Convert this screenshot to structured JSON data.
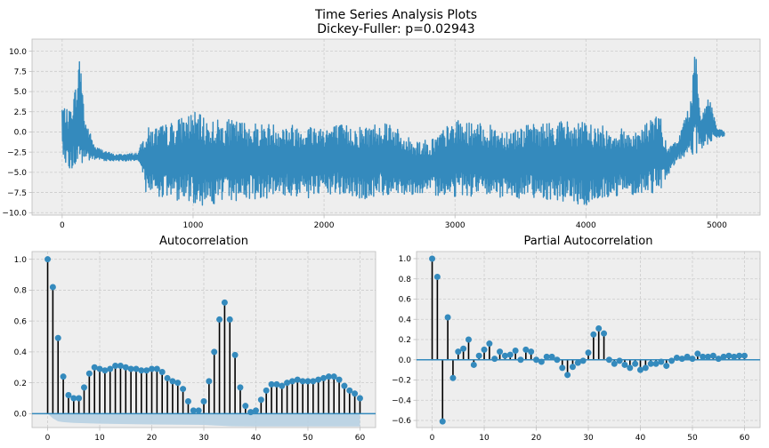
{
  "figure": {
    "title": "Time Series Analysis Plots",
    "subtitle": "Dickey-Fuller: p=0.02943"
  },
  "colors": {
    "line": "#348abd",
    "stem": "#000000",
    "marker": "#348abd",
    "baseline": "#348abd",
    "band": "#b7d0e2",
    "axes_bg": "#eeeeee",
    "grid": "#cccccc",
    "spine": "#bcbcbc",
    "tick_text": "#000000"
  },
  "chart_data": [
    {
      "id": "timeseries",
      "type": "line",
      "title": "",
      "xlabel": "",
      "ylabel": "",
      "xlim": [
        -230,
        5330
      ],
      "ylim": [
        -10.3,
        11.5
      ],
      "xticks": [
        0,
        1000,
        2000,
        3000,
        4000,
        5000
      ],
      "yticks": [
        -10.0,
        -7.5,
        -5.0,
        -2.5,
        0.0,
        2.5,
        5.0,
        7.5,
        10.0
      ],
      "ytick_labels": [
        "−10.0",
        "−7.5",
        "−5.0",
        "−2.5",
        "0.0",
        "2.5",
        "5.0",
        "7.5",
        "10.0"
      ],
      "grid": true,
      "envelope": [
        {
          "x": 0,
          "lo": -2.3,
          "hi": 3.5
        },
        {
          "x": 50,
          "lo": -5.0,
          "hi": 2.5
        },
        {
          "x": 100,
          "lo": -4.5,
          "hi": 5.5
        },
        {
          "x": 140,
          "lo": -4.8,
          "hi": 10.2
        },
        {
          "x": 170,
          "lo": -3.8,
          "hi": 2.0
        },
        {
          "x": 250,
          "lo": -3.5,
          "hi": -1.8
        },
        {
          "x": 400,
          "lo": -3.6,
          "hi": -2.8
        },
        {
          "x": 580,
          "lo": -3.6,
          "hi": -2.6
        },
        {
          "x": 640,
          "lo": -7.5,
          "hi": 0.5
        },
        {
          "x": 800,
          "lo": -8.3,
          "hi": 1.0
        },
        {
          "x": 1000,
          "lo": -8.8,
          "hi": 2.6
        },
        {
          "x": 1100,
          "lo": -9.2,
          "hi": 1.7
        },
        {
          "x": 1300,
          "lo": -8.6,
          "hi": 1.5
        },
        {
          "x": 1500,
          "lo": -8.3,
          "hi": 1.2
        },
        {
          "x": 1700,
          "lo": -8.0,
          "hi": 1.0
        },
        {
          "x": 1900,
          "lo": -8.3,
          "hi": 1.0
        },
        {
          "x": 2100,
          "lo": -7.8,
          "hi": 1.0
        },
        {
          "x": 2300,
          "lo": -8.5,
          "hi": 0.8
        },
        {
          "x": 2500,
          "lo": -7.8,
          "hi": 1.7
        },
        {
          "x": 2600,
          "lo": -7.7,
          "hi": -0.5
        },
        {
          "x": 2800,
          "lo": -7.8,
          "hi": -1.0
        },
        {
          "x": 3000,
          "lo": -8.0,
          "hi": 1.5
        },
        {
          "x": 3200,
          "lo": -8.0,
          "hi": 1.0
        },
        {
          "x": 3400,
          "lo": -8.3,
          "hi": 0.5
        },
        {
          "x": 3600,
          "lo": -8.1,
          "hi": 1.0
        },
        {
          "x": 3800,
          "lo": -8.6,
          "hi": 1.5
        },
        {
          "x": 4000,
          "lo": -9.3,
          "hi": 1.2
        },
        {
          "x": 4200,
          "lo": -8.0,
          "hi": 0.5
        },
        {
          "x": 4400,
          "lo": -7.7,
          "hi": 0.3
        },
        {
          "x": 4560,
          "lo": -7.5,
          "hi": 2.6
        },
        {
          "x": 4620,
          "lo": -5.5,
          "hi": -2.0
        },
        {
          "x": 4700,
          "lo": -3.5,
          "hi": -1.0
        },
        {
          "x": 4800,
          "lo": -3.0,
          "hi": 4.0
        },
        {
          "x": 4840,
          "lo": -3.0,
          "hi": 11.0
        },
        {
          "x": 4880,
          "lo": -2.5,
          "hi": 2.0
        },
        {
          "x": 4940,
          "lo": -1.5,
          "hi": 4.8
        },
        {
          "x": 5000,
          "lo": -0.8,
          "hi": 0.5
        },
        {
          "x": 5060,
          "lo": -0.5,
          "hi": 0.0
        }
      ]
    },
    {
      "id": "acf",
      "type": "stem",
      "title": "Autocorrelation",
      "xlim": [
        -3,
        63
      ],
      "ylim": [
        -0.09,
        1.05
      ],
      "xticks": [
        0,
        10,
        20,
        30,
        40,
        50,
        60
      ],
      "yticks": [
        0.0,
        0.2,
        0.4,
        0.6,
        0.8,
        1.0
      ],
      "ytick_labels": [
        "0.0",
        "0.2",
        "0.4",
        "0.6",
        "0.8",
        "1.0"
      ],
      "grid": true,
      "x": [
        0,
        1,
        2,
        3,
        4,
        5,
        6,
        7,
        8,
        9,
        10,
        11,
        12,
        13,
        14,
        15,
        16,
        17,
        18,
        19,
        20,
        21,
        22,
        23,
        24,
        25,
        26,
        27,
        28,
        29,
        30,
        31,
        32,
        33,
        34,
        35,
        36,
        37,
        38,
        39,
        40,
        41,
        42,
        43,
        44,
        45,
        46,
        47,
        48,
        49,
        50,
        51,
        52,
        53,
        54,
        55,
        56,
        57,
        58,
        59,
        60
      ],
      "values": [
        1.0,
        0.82,
        0.49,
        0.24,
        0.12,
        0.1,
        0.1,
        0.17,
        0.26,
        0.3,
        0.29,
        0.28,
        0.29,
        0.31,
        0.31,
        0.3,
        0.29,
        0.29,
        0.28,
        0.28,
        0.29,
        0.29,
        0.27,
        0.23,
        0.21,
        0.2,
        0.16,
        0.08,
        0.02,
        0.02,
        0.08,
        0.21,
        0.4,
        0.61,
        0.72,
        0.61,
        0.38,
        0.17,
        0.05,
        0.01,
        0.02,
        0.09,
        0.15,
        0.19,
        0.19,
        0.18,
        0.2,
        0.21,
        0.22,
        0.21,
        0.21,
        0.21,
        0.22,
        0.23,
        0.24,
        0.24,
        0.22,
        0.18,
        0.15,
        0.13,
        0.1
      ],
      "confidence_band": {
        "x": [
          0,
          1,
          2,
          3,
          5,
          10,
          20,
          30,
          32,
          35,
          40,
          50,
          60
        ],
        "upper": [
          0,
          0.0,
          0.0,
          0.0,
          0.0,
          0.0,
          0.0,
          0.0,
          0.0,
          0.0,
          0.0,
          0.0,
          0.0
        ],
        "lower": [
          0,
          -0.03,
          -0.05,
          -0.055,
          -0.06,
          -0.065,
          -0.07,
          -0.073,
          -0.076,
          -0.081,
          -0.083,
          -0.083,
          -0.083
        ]
      }
    },
    {
      "id": "pacf",
      "type": "stem",
      "title": "Partial Autocorrelation",
      "xlim": [
        -3,
        63
      ],
      "ylim": [
        -0.67,
        1.07
      ],
      "xticks": [
        0,
        10,
        20,
        30,
        40,
        50,
        60
      ],
      "yticks": [
        -0.6,
        -0.4,
        -0.2,
        0.0,
        0.2,
        0.4,
        0.6,
        0.8,
        1.0
      ],
      "ytick_labels": [
        "−0.6",
        "−0.4",
        "−0.2",
        "0.0",
        "0.2",
        "0.4",
        "0.6",
        "0.8",
        "1.0"
      ],
      "grid": true,
      "x": [
        0,
        1,
        2,
        3,
        4,
        5,
        6,
        7,
        8,
        9,
        10,
        11,
        12,
        13,
        14,
        15,
        16,
        17,
        18,
        19,
        20,
        21,
        22,
        23,
        24,
        25,
        26,
        27,
        28,
        29,
        30,
        31,
        32,
        33,
        34,
        35,
        36,
        37,
        38,
        39,
        40,
        41,
        42,
        43,
        44,
        45,
        46,
        47,
        48,
        49,
        50,
        51,
        52,
        53,
        54,
        55,
        56,
        57,
        58,
        59,
        60
      ],
      "values": [
        1.0,
        0.82,
        -0.61,
        0.42,
        -0.18,
        0.08,
        0.11,
        0.2,
        -0.05,
        0.04,
        0.1,
        0.16,
        0.01,
        0.08,
        0.04,
        0.05,
        0.09,
        0.0,
        0.1,
        0.08,
        0.0,
        -0.02,
        0.03,
        0.03,
        0.0,
        -0.08,
        -0.15,
        -0.07,
        -0.03,
        -0.01,
        0.07,
        0.25,
        0.31,
        0.26,
        0.0,
        -0.04,
        -0.01,
        -0.05,
        -0.08,
        -0.04,
        -0.1,
        -0.08,
        -0.04,
        -0.04,
        -0.02,
        -0.06,
        -0.01,
        0.02,
        0.01,
        0.03,
        0.01,
        0.06,
        0.03,
        0.03,
        0.04,
        0.01,
        0.03,
        0.04,
        0.03,
        0.04,
        0.04
      ]
    }
  ]
}
